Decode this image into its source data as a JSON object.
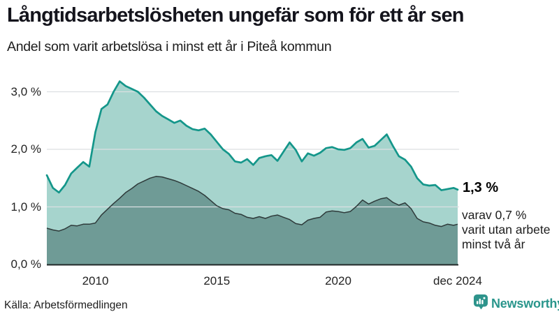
{
  "header": {
    "title": "Långtidsarbetslösheten ungefär som för ett år sen",
    "subtitle": "Andel som varit arbetslösa i minst ett år i Piteå kommun"
  },
  "chart_data": {
    "type": "area",
    "title": "Långtidsarbetslösheten ungefär som för ett år sen",
    "subtitle": "Andel som varit arbetslösa i minst ett år i Piteå kommun",
    "unit": "%",
    "xlim": [
      2008.0,
      2024.92
    ],
    "ylim": [
      0,
      3.4
    ],
    "grid": "horizontal",
    "x_ticks": [
      {
        "label": "2010",
        "year": 2010
      },
      {
        "label": "2015",
        "year": 2015
      },
      {
        "label": "2020",
        "year": 2020
      },
      {
        "label": "dec 2024",
        "year": 2024.92
      }
    ],
    "y_ticks": [
      {
        "label": "0,0 %",
        "value": 0
      },
      {
        "label": "1,0 %",
        "value": 1
      },
      {
        "label": "2,0 %",
        "value": 2
      },
      {
        "label": "3,0 %",
        "value": 3
      }
    ],
    "x": [
      2008.0,
      2008.25,
      2008.5,
      2008.75,
      2009.0,
      2009.25,
      2009.5,
      2009.75,
      2010.0,
      2010.25,
      2010.5,
      2010.75,
      2011.0,
      2011.25,
      2011.5,
      2011.75,
      2012.0,
      2012.25,
      2012.5,
      2012.75,
      2013.0,
      2013.25,
      2013.5,
      2013.75,
      2014.0,
      2014.25,
      2014.5,
      2014.75,
      2015.0,
      2015.25,
      2015.5,
      2015.75,
      2016.0,
      2016.25,
      2016.5,
      2016.75,
      2017.0,
      2017.25,
      2017.5,
      2017.75,
      2018.0,
      2018.25,
      2018.5,
      2018.75,
      2019.0,
      2019.25,
      2019.5,
      2019.75,
      2020.0,
      2020.25,
      2020.5,
      2020.75,
      2021.0,
      2021.25,
      2021.5,
      2021.75,
      2022.0,
      2022.25,
      2022.5,
      2022.75,
      2023.0,
      2023.25,
      2023.5,
      2023.75,
      2024.0,
      2024.25,
      2024.5,
      2024.75,
      2024.92
    ],
    "series": [
      {
        "name": "Arbetslösa minst ett år",
        "values": [
          1.55,
          1.33,
          1.25,
          1.38,
          1.58,
          1.68,
          1.78,
          1.7,
          2.3,
          2.7,
          2.78,
          3.0,
          3.18,
          3.1,
          3.05,
          3.0,
          2.9,
          2.78,
          2.66,
          2.58,
          2.52,
          2.46,
          2.5,
          2.41,
          2.35,
          2.33,
          2.36,
          2.26,
          2.13,
          2.0,
          1.92,
          1.79,
          1.77,
          1.83,
          1.73,
          1.85,
          1.88,
          1.9,
          1.8,
          1.96,
          2.12,
          1.99,
          1.79,
          1.93,
          1.89,
          1.94,
          2.02,
          2.04,
          2.0,
          1.99,
          2.02,
          2.12,
          2.18,
          2.03,
          2.06,
          2.16,
          2.26,
          2.06,
          1.88,
          1.82,
          1.7,
          1.5,
          1.39,
          1.37,
          1.38,
          1.29,
          1.31,
          1.33,
          1.3
        ]
      },
      {
        "name": "Arbetslösa minst två år",
        "values": [
          0.63,
          0.6,
          0.58,
          0.62,
          0.68,
          0.67,
          0.7,
          0.7,
          0.72,
          0.86,
          0.96,
          1.06,
          1.15,
          1.25,
          1.32,
          1.4,
          1.45,
          1.5,
          1.53,
          1.52,
          1.49,
          1.46,
          1.42,
          1.37,
          1.32,
          1.27,
          1.2,
          1.11,
          1.02,
          0.97,
          0.95,
          0.89,
          0.87,
          0.82,
          0.8,
          0.83,
          0.8,
          0.84,
          0.86,
          0.82,
          0.78,
          0.71,
          0.69,
          0.77,
          0.8,
          0.82,
          0.91,
          0.93,
          0.92,
          0.9,
          0.92,
          1.01,
          1.12,
          1.05,
          1.1,
          1.14,
          1.16,
          1.08,
          1.03,
          1.07,
          0.97,
          0.8,
          0.74,
          0.72,
          0.68,
          0.66,
          0.7,
          0.68,
          0.7
        ]
      }
    ],
    "annotations": {
      "end_label": "1,3 %",
      "sub_lines": [
        "varav 0,7 %",
        "varit utan arbete",
        "minst två år"
      ]
    }
  },
  "colors": {
    "accent_line": "#14968a",
    "area_light": "#a6d4cd",
    "area_dark": "#6f9b96",
    "line_dark": "#2e3a3a",
    "gridline": "#dcdfe1",
    "axis": "#202828",
    "brand": "#2e948c"
  },
  "footer": {
    "source": "Källa: Arbetsförmedlingen",
    "brand": "Newsworthy"
  }
}
